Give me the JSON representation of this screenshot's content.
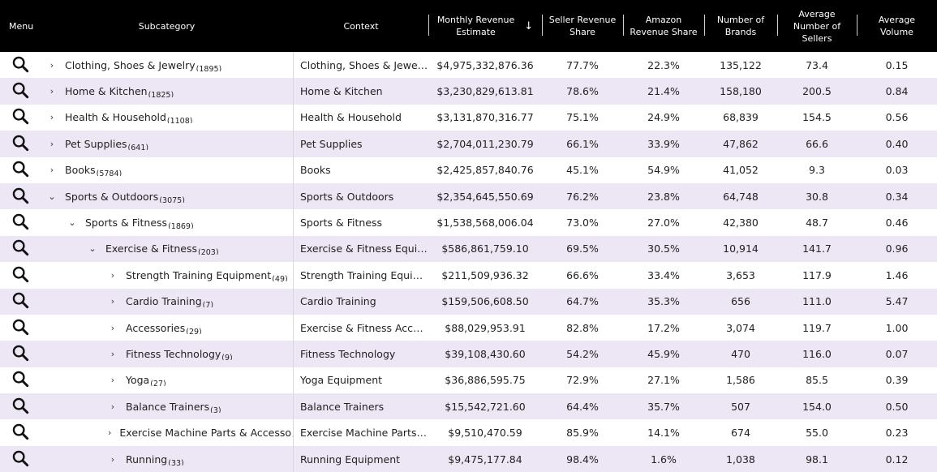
{
  "columns": {
    "menu": "Menu",
    "subcategory": "Subcategory",
    "context": "Context",
    "monthly_revenue_1": "Monthly Revenue",
    "monthly_revenue_2": "Estimate",
    "sort_icon": "↓",
    "seller_share_1": "Seller Revenue",
    "seller_share_2": "Share",
    "amazon_share_1": "Amazon",
    "amazon_share_2": "Revenue Share",
    "brands_1": "Number of",
    "brands_2": "Brands",
    "avg_sellers_1": "Average",
    "avg_sellers_2": "Number of",
    "avg_sellers_3": "Sellers",
    "avg_volume_1": "Average",
    "avg_volume_2": "Volume"
  },
  "icons": {
    "menu_row": "search-icon",
    "collapsed": "chevron-right-icon",
    "expanded": "chevron-down-icon"
  },
  "rows": [
    {
      "name": "Clothing, Shoes & Jewelry",
      "count": "(1895)",
      "chev": "›",
      "context": "Clothing, Shoes & Jewelry",
      "revenue": "$4,975,332,876.36",
      "seller_share": "77.7%",
      "amazon_share": "22.3%",
      "brands": "135,122",
      "avg_sellers": "73.4",
      "avg_volume": "0.15"
    },
    {
      "name": "Home & Kitchen",
      "count": "(1825)",
      "chev": "›",
      "context": "Home & Kitchen",
      "revenue": "$3,230,829,613.81",
      "seller_share": "78.6%",
      "amazon_share": "21.4%",
      "brands": "158,180",
      "avg_sellers": "200.5",
      "avg_volume": "0.84"
    },
    {
      "name": "Health & Household",
      "count": "(1108)",
      "chev": "›",
      "context": "Health & Household",
      "revenue": "$3,131,870,316.77",
      "seller_share": "75.1%",
      "amazon_share": "24.9%",
      "brands": "68,839",
      "avg_sellers": "154.5",
      "avg_volume": "0.56"
    },
    {
      "name": "Pet Supplies",
      "count": "(641)",
      "chev": "›",
      "context": "Pet Supplies",
      "revenue": "$2,704,011,230.79",
      "seller_share": "66.1%",
      "amazon_share": "33.9%",
      "brands": "47,862",
      "avg_sellers": "66.6",
      "avg_volume": "0.40"
    },
    {
      "name": "Books",
      "count": "(5784)",
      "chev": "›",
      "context": "Books",
      "revenue": "$2,425,857,840.76",
      "seller_share": "45.1%",
      "amazon_share": "54.9%",
      "brands": "41,052",
      "avg_sellers": "9.3",
      "avg_volume": "0.03"
    },
    {
      "name": "Sports & Outdoors",
      "count": "(3075)",
      "chev": "⌄",
      "context": "Sports & Outdoors",
      "revenue": "$2,354,645,550.69",
      "seller_share": "76.2%",
      "amazon_share": "23.8%",
      "brands": "64,748",
      "avg_sellers": "30.8",
      "avg_volume": "0.34"
    },
    {
      "name": "Sports & Fitness",
      "count": "(1869)",
      "chev": "⌄",
      "context": "Sports & Fitness",
      "revenue": "$1,538,568,006.04",
      "seller_share": "73.0%",
      "amazon_share": "27.0%",
      "brands": "42,380",
      "avg_sellers": "48.7",
      "avg_volume": "0.46"
    },
    {
      "name": "Exercise & Fitness",
      "count": "(203)",
      "chev": "⌄",
      "context": "Exercise & Fitness Equipment",
      "revenue": "$586,861,759.10",
      "seller_share": "69.5%",
      "amazon_share": "30.5%",
      "brands": "10,914",
      "avg_sellers": "141.7",
      "avg_volume": "0.96"
    },
    {
      "name": "Strength Training Equipment",
      "count": "(49)",
      "chev": "›",
      "context": "Strength Training Equipment",
      "revenue": "$211,509,936.32",
      "seller_share": "66.6%",
      "amazon_share": "33.4%",
      "brands": "3,653",
      "avg_sellers": "117.9",
      "avg_volume": "1.46"
    },
    {
      "name": "Cardio Training",
      "count": "(7)",
      "chev": "›",
      "context": "Cardio Training",
      "revenue": "$159,506,608.50",
      "seller_share": "64.7%",
      "amazon_share": "35.3%",
      "brands": "656",
      "avg_sellers": "111.0",
      "avg_volume": "5.47"
    },
    {
      "name": "Accessories",
      "count": "(29)",
      "chev": "›",
      "context": "Exercise & Fitness Accessori...",
      "revenue": "$88,029,953.91",
      "seller_share": "82.8%",
      "amazon_share": "17.2%",
      "brands": "3,074",
      "avg_sellers": "119.7",
      "avg_volume": "1.00"
    },
    {
      "name": "Fitness Technology",
      "count": "(9)",
      "chev": "›",
      "context": "Fitness Technology",
      "revenue": "$39,108,430.60",
      "seller_share": "54.2%",
      "amazon_share": "45.9%",
      "brands": "470",
      "avg_sellers": "116.0",
      "avg_volume": "0.07"
    },
    {
      "name": "Yoga",
      "count": "(27)",
      "chev": "›",
      "context": "Yoga Equipment",
      "revenue": "$36,886,595.75",
      "seller_share": "72.9%",
      "amazon_share": "27.1%",
      "brands": "1,586",
      "avg_sellers": "85.5",
      "avg_volume": "0.39"
    },
    {
      "name": "Balance Trainers",
      "count": "(3)",
      "chev": "›",
      "context": "Balance Trainers",
      "revenue": "$15,542,721.60",
      "seller_share": "64.4%",
      "amazon_share": "35.7%",
      "brands": "507",
      "avg_sellers": "154.0",
      "avg_volume": "0.50"
    },
    {
      "name": "Exercise Machine Parts & Accesso",
      "count": "(7)",
      "chev": "›",
      "context": "Exercise Machine Parts & A...",
      "revenue": "$9,510,470.59",
      "seller_share": "85.9%",
      "amazon_share": "14.1%",
      "brands": "674",
      "avg_sellers": "55.0",
      "avg_volume": "0.23"
    },
    {
      "name": "Running",
      "count": "(33)",
      "chev": "›",
      "context": "Running Equipment",
      "revenue": "$9,475,177.84",
      "seller_share": "98.4%",
      "amazon_share": "1.6%",
      "brands": "1,038",
      "avg_sellers": "98.1",
      "avg_volume": "0.12"
    }
  ]
}
